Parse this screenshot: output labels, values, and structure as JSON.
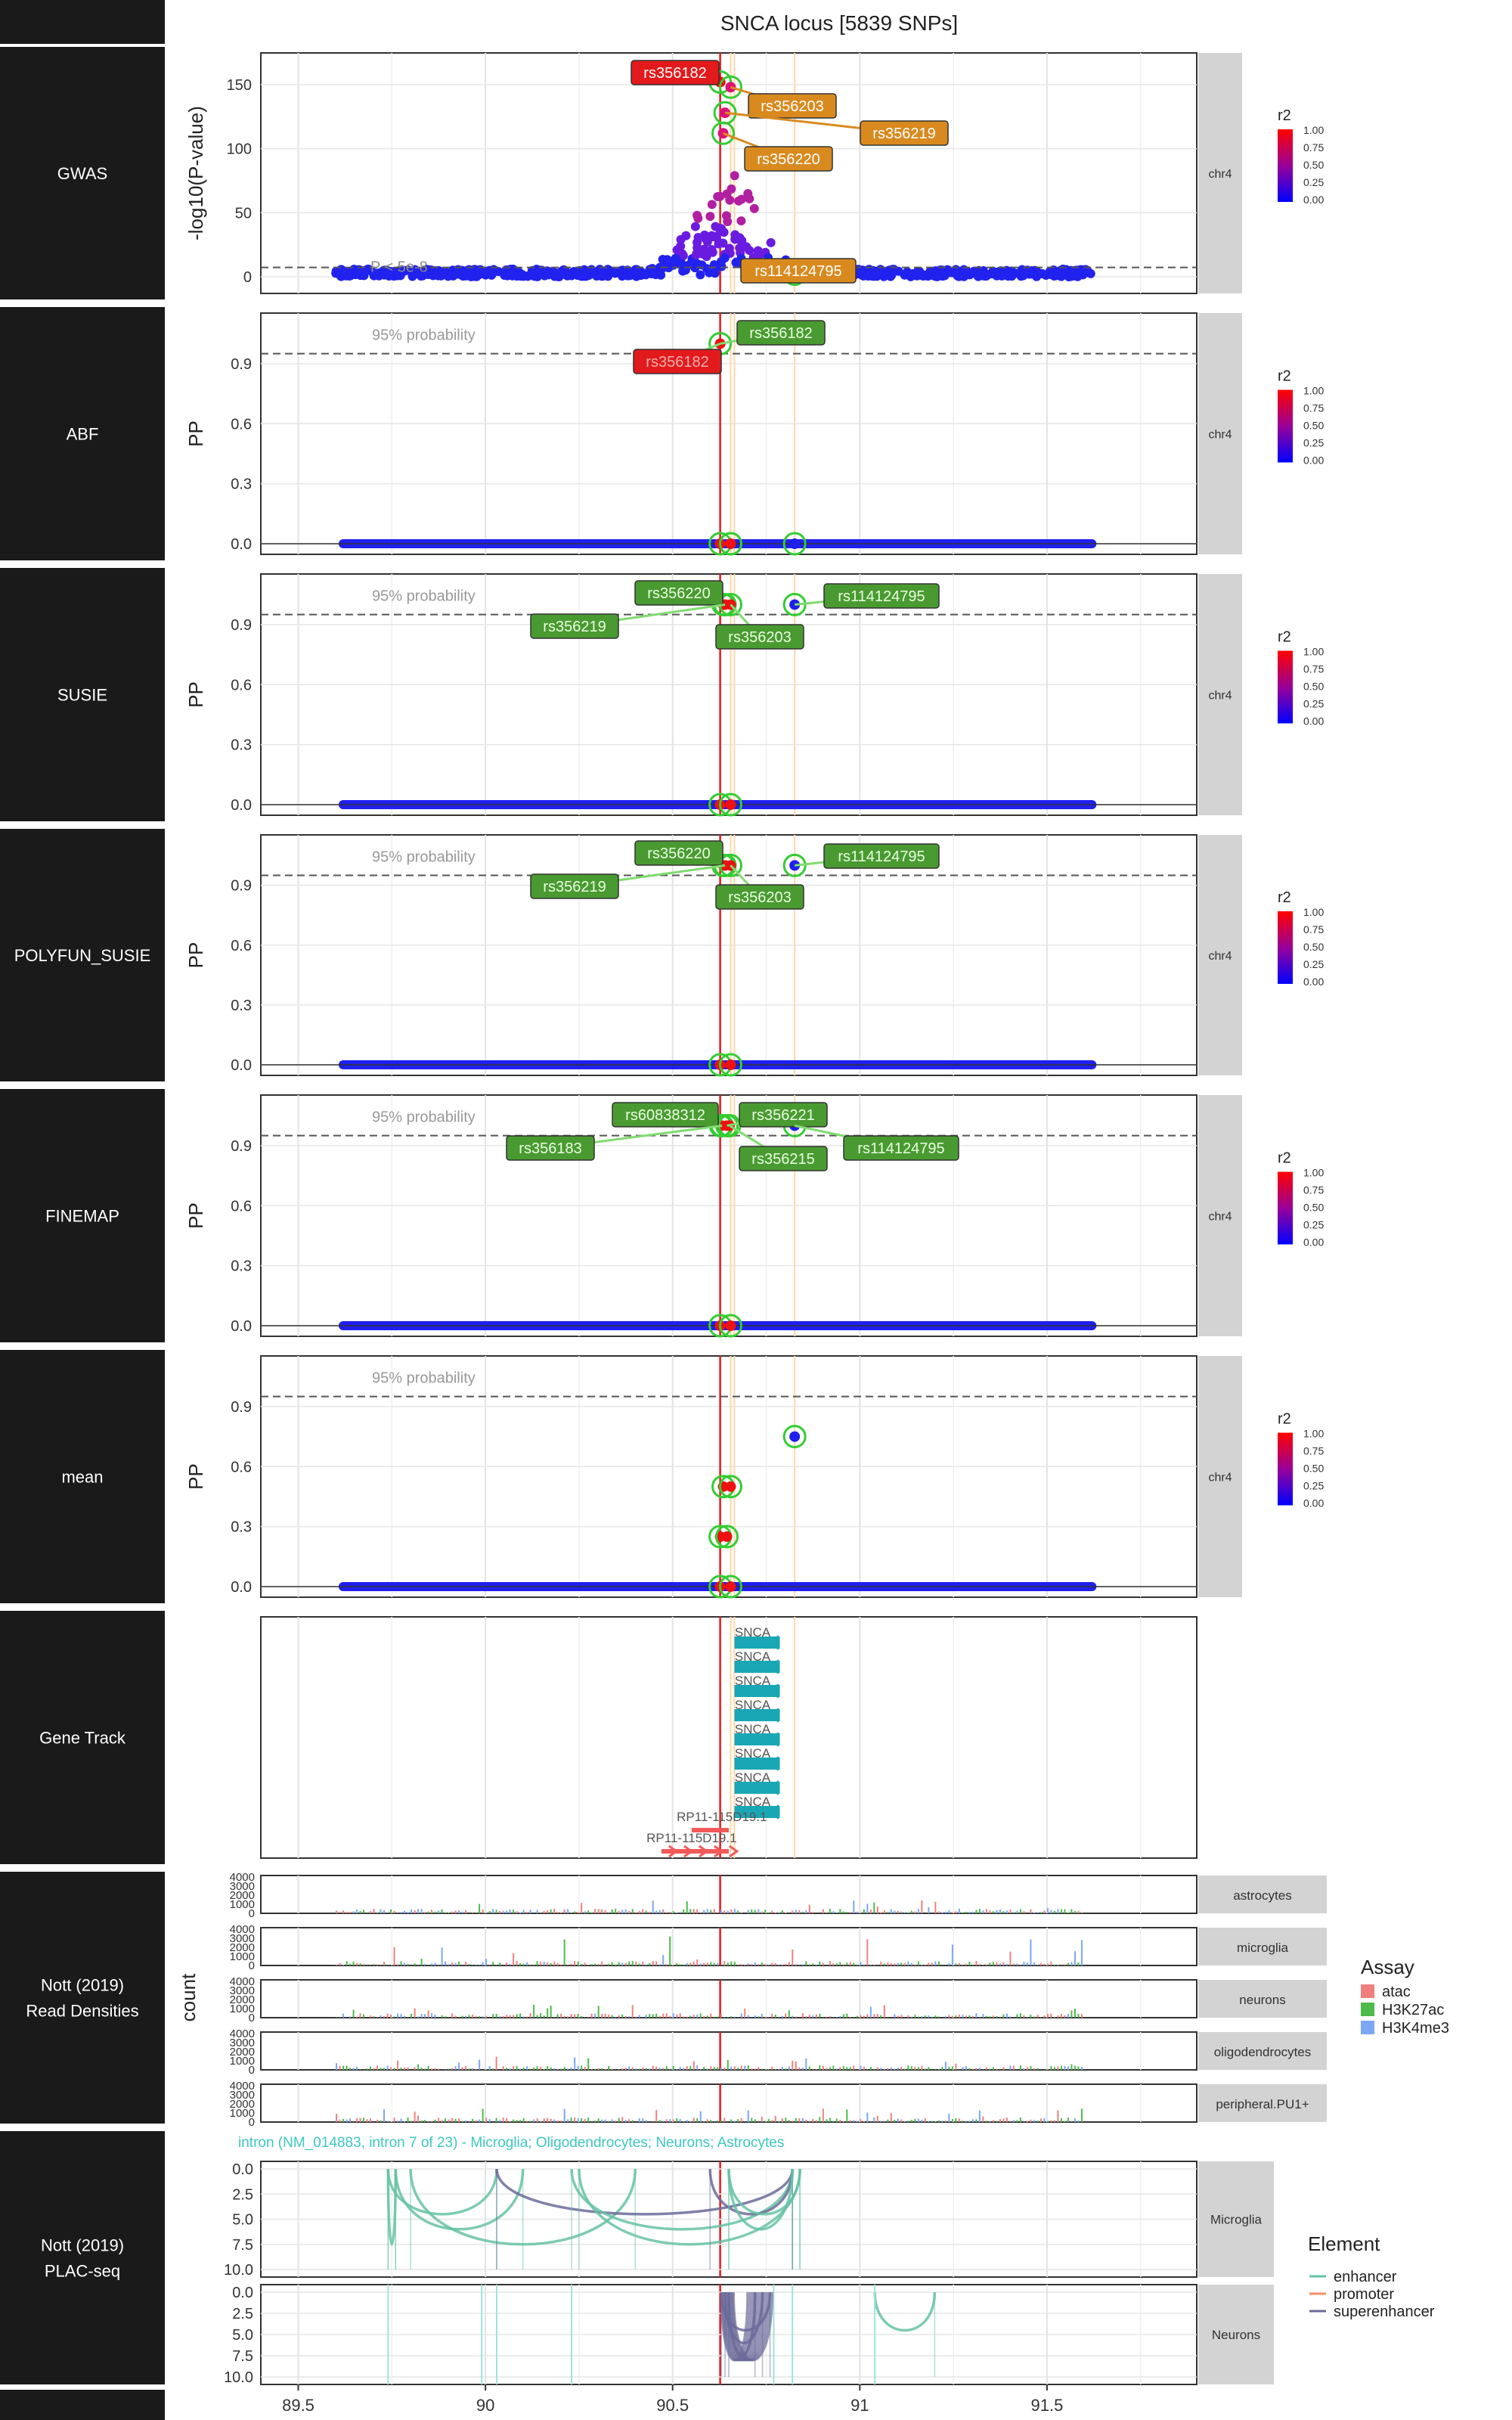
{
  "title": "SNCA locus [5839 SNPs]",
  "colors": {
    "sidebar": "#1a1a1a",
    "strip": "#d3d3d3",
    "lead_line": "#e31a1c",
    "cs_line": "#ffd7a8",
    "label_red": "#e31a1c",
    "label_green": "#4a9a32",
    "label_orange": "#d98a1f",
    "enhancer": "#66c2a5",
    "promoter": "#fc8d62",
    "superenhancer": "#6b6b9a",
    "gene_snca": "#1aa7b5",
    "gene_rp11": "#f25a5a"
  },
  "x_axis": {
    "min": 89.4,
    "max": 91.9,
    "ticks": [
      "89.5",
      "90",
      "90.5",
      "91",
      "91.5"
    ]
  },
  "sidebar_labels": [
    "GWAS",
    "ABF",
    "SUSIE",
    "POLYFUN_SUSIE",
    "FINEMAP",
    "mean",
    "Gene Track",
    "Nott (2019)\nRead Densities",
    "Nott (2019)\nPLAC-seq"
  ],
  "chrom": "chr4",
  "r2_legend": {
    "title": "r2",
    "ticks": [
      "1.00",
      "0.75",
      "0.50",
      "0.25",
      "0.00"
    ]
  },
  "pp_annotation": "95% probability",
  "gwas_annotation": "P < 5e-8",
  "chart_data": [
    {
      "type": "scatter",
      "panel": "GWAS",
      "ylabel": "-log10(P-value)",
      "ylim": [
        0,
        170
      ],
      "yticks": [
        0,
        50,
        100,
        150
      ],
      "threshold": 7.3,
      "lead_snps": [
        {
          "x": 90.627,
          "y": 152,
          "label": "rs356182",
          "style": "red"
        },
        {
          "x": 90.655,
          "y": 148,
          "label": "rs356203",
          "style": "orange"
        },
        {
          "x": 90.64,
          "y": 128,
          "label": "rs356219",
          "style": "orange"
        },
        {
          "x": 90.635,
          "y": 112,
          "label": "rs356220",
          "style": "orange"
        },
        {
          "x": 90.826,
          "y": 2,
          "label": "rs114124795",
          "style": "orange"
        }
      ]
    },
    {
      "type": "scatter",
      "panel": "ABF",
      "ylabel": "PP",
      "ylim": [
        0,
        1.1
      ],
      "yticks": [
        "0.0",
        "0.3",
        "0.6",
        "0.9"
      ],
      "points": [
        {
          "x": 90.627,
          "y": 1.0,
          "label": "rs356182",
          "lead": true
        },
        {
          "x": 90.655,
          "y": 0.0
        },
        {
          "x": 90.826,
          "y": 0.0
        }
      ]
    },
    {
      "type": "scatter",
      "panel": "SUSIE",
      "ylabel": "PP",
      "ylim": [
        0,
        1.1
      ],
      "yticks": [
        "0.0",
        "0.3",
        "0.6",
        "0.9"
      ],
      "points": [
        {
          "x": 90.635,
          "y": 1.0,
          "label": "rs356220"
        },
        {
          "x": 90.64,
          "y": 1.0,
          "label": "rs356219"
        },
        {
          "x": 90.655,
          "y": 1.0,
          "label": "rs356203"
        },
        {
          "x": 90.826,
          "y": 1.0,
          "label": "rs114124795"
        }
      ]
    },
    {
      "type": "scatter",
      "panel": "POLYFUN_SUSIE",
      "ylabel": "PP",
      "ylim": [
        0,
        1.1
      ],
      "yticks": [
        "0.0",
        "0.3",
        "0.6",
        "0.9"
      ],
      "points": [
        {
          "x": 90.635,
          "y": 1.0,
          "label": "rs356220"
        },
        {
          "x": 90.64,
          "y": 1.0,
          "label": "rs356219"
        },
        {
          "x": 90.655,
          "y": 1.0,
          "label": "rs356203"
        },
        {
          "x": 90.826,
          "y": 1.0,
          "label": "rs114124795"
        }
      ]
    },
    {
      "type": "scatter",
      "panel": "FINEMAP",
      "ylabel": "PP",
      "ylim": [
        0,
        1.1
      ],
      "yticks": [
        "0.0",
        "0.3",
        "0.6",
        "0.9"
      ],
      "points": [
        {
          "x": 90.628,
          "y": 1.0,
          "label": "rs60838312"
        },
        {
          "x": 90.632,
          "y": 1.0,
          "label": "rs356183"
        },
        {
          "x": 90.645,
          "y": 1.0,
          "label": "rs356221"
        },
        {
          "x": 90.652,
          "y": 1.0,
          "label": "rs356215"
        },
        {
          "x": 90.826,
          "y": 1.0,
          "label": "rs114124795"
        }
      ]
    },
    {
      "type": "scatter",
      "panel": "mean",
      "ylabel": "PP",
      "ylim": [
        0,
        1.1
      ],
      "yticks": [
        "0.0",
        "0.3",
        "0.6",
        "0.9"
      ],
      "points": [
        {
          "x": 90.826,
          "y": 0.75
        },
        {
          "x": 90.635,
          "y": 0.5
        },
        {
          "x": 90.655,
          "y": 0.5
        },
        {
          "x": 90.627,
          "y": 0.25
        },
        {
          "x": 90.645,
          "y": 0.25
        }
      ]
    },
    {
      "type": "gene_track",
      "genes": [
        {
          "name": "SNCA",
          "start": 90.645,
          "end": 90.76,
          "strand": "-"
        },
        {
          "name": "RP11-115D19.1",
          "start": 90.47,
          "end": 90.65,
          "strand": "+"
        }
      ],
      "snca_rows": 8
    },
    {
      "type": "bar",
      "panel": "Nott (2019) Read Densities",
      "ylabel": "count",
      "yticks": [
        "0",
        "1000",
        "2000",
        "3000",
        "4000"
      ],
      "tracks": [
        "astrocytes",
        "microglia",
        "neurons",
        "oligodendrocytes",
        "peripheral.PU1+"
      ],
      "legend": {
        "title": "Assay",
        "items": [
          {
            "name": "atac",
            "color": "#f08080"
          },
          {
            "name": "H3K27ac",
            "color": "#4cbb4c"
          },
          {
            "name": "H3K4me3",
            "color": "#7ba7f5"
          }
        ]
      }
    },
    {
      "type": "arc",
      "panel": "Nott (2019) PLAC-seq",
      "annotation": "intron (NM_014883, intron 7 of 23) - Microglia; Oligodendrocytes; Neurons; Astrocytes",
      "yticks": [
        "0.0",
        "2.5",
        "5.0",
        "7.5",
        "10.0"
      ],
      "tracks": [
        "Microglia",
        "Neurons"
      ],
      "legend": {
        "title": "Element",
        "items": [
          {
            "name": "enhancer",
            "color": "#66c2a5"
          },
          {
            "name": "promoter",
            "color": "#fc8d62"
          },
          {
            "name": "superenhancer",
            "color": "#6b6b9a"
          }
        ]
      },
      "microglia_arcs": [
        {
          "a": 89.74,
          "b": 90.03,
          "type": "enhancer"
        },
        {
          "a": 89.76,
          "b": 90.1,
          "type": "enhancer"
        },
        {
          "a": 89.8,
          "b": 90.4,
          "type": "enhancer"
        },
        {
          "a": 90.03,
          "b": 90.82,
          "type": "superenhancer"
        },
        {
          "a": 90.23,
          "b": 90.82,
          "type": "enhancer"
        },
        {
          "a": 90.25,
          "b": 90.84,
          "type": "enhancer"
        },
        {
          "a": 90.6,
          "b": 90.82,
          "type": "superenhancer"
        },
        {
          "a": 90.65,
          "b": 90.82,
          "type": "enhancer"
        },
        {
          "a": 89.74,
          "b": 89.76,
          "type": "enhancer"
        },
        {
          "a": 90.65,
          "b": 90.84,
          "type": "enhancer"
        }
      ],
      "neurons_arcs": [
        {
          "a": 90.63,
          "b": 90.76,
          "type": "superenhancer"
        },
        {
          "a": 90.64,
          "b": 90.74,
          "type": "superenhancer"
        },
        {
          "a": 90.65,
          "b": 90.72,
          "type": "superenhancer"
        },
        {
          "a": 91.04,
          "b": 91.2,
          "type": "enhancer"
        }
      ],
      "neurons_ticks": [
        89.74,
        89.99,
        90.03,
        90.23,
        90.77,
        90.82,
        91.04
      ]
    }
  ]
}
